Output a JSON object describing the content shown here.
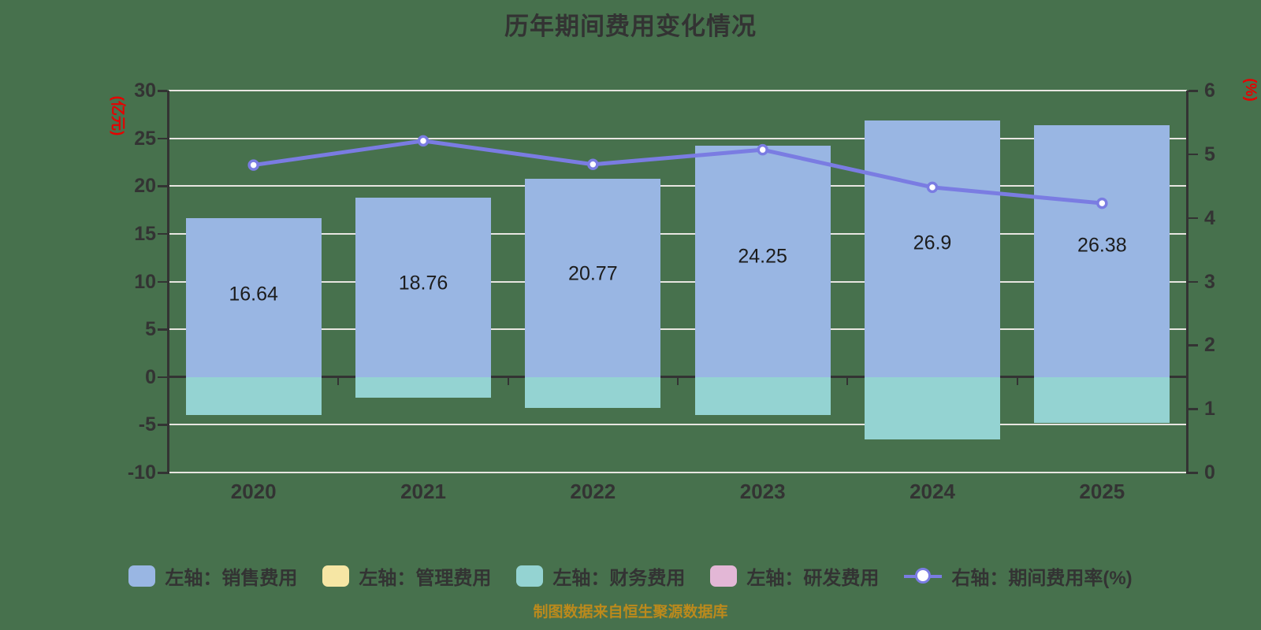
{
  "colors": {
    "background": "#47714d",
    "title_color": "#333333",
    "caption_color": "#bc8a1c",
    "axis_color": "#333333",
    "axis_text": "#333333",
    "grid_color": "#e8e6e1",
    "axis_name_red": "#e60000",
    "bar_label": "#1c1c1c"
  },
  "chart_data": {
    "type": "bar",
    "subtype": "stacked bars with overlay line on secondary axis",
    "title": "历年期间费用变化情况",
    "caption": "制图数据来自恒生聚源数据库",
    "categories": [
      "2020",
      "2021",
      "2022",
      "2023",
      "2024",
      "2025"
    ],
    "left_axis": {
      "name": "(亿元)",
      "min": -10,
      "max": 30,
      "tick_step": 5,
      "ticks": [
        "30",
        "25",
        "20",
        "15",
        "10",
        "5",
        "0",
        "-5",
        "-10"
      ]
    },
    "right_axis": {
      "name": "(%)",
      "min": 0,
      "max": 6,
      "tick_step": 1,
      "ticks": [
        "6",
        "5",
        "4",
        "3",
        "2",
        "1",
        "0"
      ]
    },
    "grid": true,
    "legend_position": "bottom",
    "series": [
      {
        "id": "sales",
        "name": "左轴：销售费用",
        "axis": "left",
        "type": "bar",
        "color": "#99b6e3",
        "values": [
          16.64,
          18.76,
          20.77,
          24.25,
          26.9,
          26.38
        ],
        "data_labels": [
          "16.64",
          "18.76",
          "20.77",
          "24.25",
          "26.9",
          "26.38"
        ]
      },
      {
        "id": "admin",
        "name": "左轴：管理费用",
        "axis": "left",
        "type": "bar",
        "color": "#f6e6a4",
        "values": []
      },
      {
        "id": "finance",
        "name": "左轴：财务费用",
        "axis": "left",
        "type": "bar",
        "color": "#94d3d2",
        "values": [
          -4.0,
          -2.2,
          -3.2,
          -4.0,
          -6.5,
          -4.8
        ]
      },
      {
        "id": "rd",
        "name": "左轴：研发费用",
        "axis": "left",
        "type": "bar",
        "color": "#e3b7d6",
        "values": []
      },
      {
        "id": "ratio",
        "name": "右轴：期间费用率(%)",
        "axis": "right",
        "type": "line",
        "color": "#7a7ce2",
        "marker": "circle-white-fill",
        "values": [
          4.83,
          5.21,
          4.84,
          5.07,
          4.48,
          4.23
        ]
      }
    ]
  }
}
